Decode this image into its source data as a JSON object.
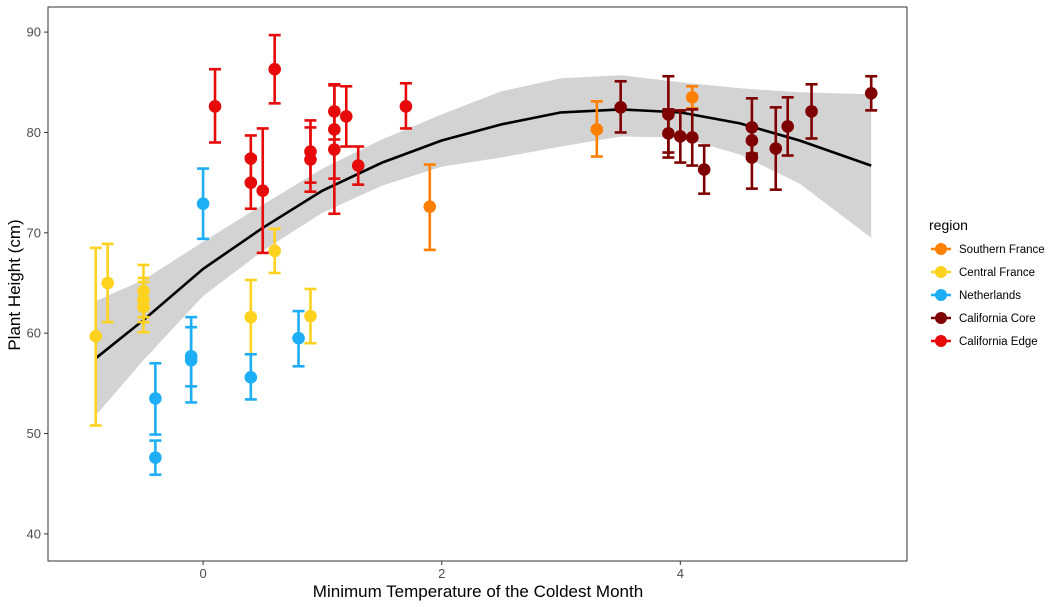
{
  "chart_data": {
    "type": "scatter",
    "xlabel": "Minimum Temperature of the Coldest Month",
    "ylabel": "Plant Height (cm)",
    "xlim": [
      -1.3,
      5.9
    ],
    "ylim": [
      37.3,
      92.5
    ],
    "x_ticks": [
      0,
      2,
      4
    ],
    "y_ticks": [
      40,
      50,
      60,
      70,
      80,
      90
    ],
    "grid": false,
    "legend": {
      "title": "region",
      "position": "right",
      "entries": [
        "Southern France",
        "Central France",
        "Netherlands",
        "California Core",
        "California Edge"
      ]
    },
    "series": [
      {
        "name": "Southern France",
        "color": "#FF7F00",
        "points": [
          {
            "x": 1.9,
            "y": 72.6,
            "lo": 68.3,
            "hi": 76.8
          },
          {
            "x": 3.3,
            "y": 80.3,
            "lo": 77.6,
            "hi": 83.1
          },
          {
            "x": 4.1,
            "y": 83.5,
            "lo": 82.4,
            "hi": 84.6
          }
        ]
      },
      {
        "name": "Central France",
        "color": "#FFD21F",
        "points": [
          {
            "x": -0.9,
            "y": 59.7,
            "lo": 50.8,
            "hi": 68.5
          },
          {
            "x": -0.8,
            "y": 65.0,
            "lo": 61.1,
            "hi": 68.9
          },
          {
            "x": -0.5,
            "y": 64.2,
            "lo": 61.6,
            "hi": 66.8
          },
          {
            "x": -0.5,
            "y": 63.3,
            "lo": 61.1,
            "hi": 65.5
          },
          {
            "x": -0.5,
            "y": 62.6,
            "lo": 60.1,
            "hi": 65.1
          },
          {
            "x": 0.4,
            "y": 61.6,
            "lo": 57.9,
            "hi": 65.3
          },
          {
            "x": 0.6,
            "y": 68.2,
            "lo": 66.0,
            "hi": 70.4
          },
          {
            "x": 0.9,
            "y": 61.7,
            "lo": 59.0,
            "hi": 64.4
          }
        ]
      },
      {
        "name": "Netherlands",
        "color": "#1EAEF5",
        "points": [
          {
            "x": -0.4,
            "y": 53.5,
            "lo": 49.9,
            "hi": 57.0
          },
          {
            "x": -0.4,
            "y": 47.6,
            "lo": 45.9,
            "hi": 49.3
          },
          {
            "x": -0.1,
            "y": 57.7,
            "lo": 54.7,
            "hi": 60.6
          },
          {
            "x": -0.1,
            "y": 57.3,
            "lo": 53.1,
            "hi": 61.6
          },
          {
            "x": 0.0,
            "y": 72.9,
            "lo": 69.4,
            "hi": 76.4
          },
          {
            "x": 0.4,
            "y": 55.6,
            "lo": 53.4,
            "hi": 57.9
          },
          {
            "x": 0.8,
            "y": 59.5,
            "lo": 56.7,
            "hi": 62.2
          }
        ]
      },
      {
        "name": "California Core",
        "color": "#7F0000",
        "points": [
          {
            "x": 3.5,
            "y": 82.5,
            "lo": 80.0,
            "hi": 85.1
          },
          {
            "x": 3.9,
            "y": 81.8,
            "lo": 78.0,
            "hi": 85.6
          },
          {
            "x": 3.9,
            "y": 79.9,
            "lo": 77.5,
            "hi": 82.3
          },
          {
            "x": 4.0,
            "y": 79.6,
            "lo": 77.0,
            "hi": 82.2
          },
          {
            "x": 4.1,
            "y": 79.5,
            "lo": 76.7,
            "hi": 82.3
          },
          {
            "x": 4.2,
            "y": 76.3,
            "lo": 73.9,
            "hi": 78.7
          },
          {
            "x": 4.6,
            "y": 80.5,
            "lo": 77.6,
            "hi": 83.4
          },
          {
            "x": 4.6,
            "y": 79.2,
            "lo": 77.9,
            "hi": 80.5
          },
          {
            "x": 4.6,
            "y": 77.5,
            "lo": 74.4,
            "hi": 80.6
          },
          {
            "x": 4.8,
            "y": 78.4,
            "lo": 74.3,
            "hi": 82.5
          },
          {
            "x": 4.9,
            "y": 80.6,
            "lo": 77.7,
            "hi": 83.5
          },
          {
            "x": 5.1,
            "y": 82.1,
            "lo": 79.4,
            "hi": 84.8
          },
          {
            "x": 5.6,
            "y": 83.9,
            "lo": 82.2,
            "hi": 85.6
          }
        ]
      },
      {
        "name": "California Edge",
        "color": "#E60A0A",
        "points": [
          {
            "x": 0.1,
            "y": 82.6,
            "lo": 79.0,
            "hi": 86.3
          },
          {
            "x": 0.4,
            "y": 77.4,
            "lo": 75.1,
            "hi": 79.7
          },
          {
            "x": 0.4,
            "y": 75.0,
            "lo": 72.4,
            "hi": 77.6
          },
          {
            "x": 0.5,
            "y": 74.2,
            "lo": 68.0,
            "hi": 80.4
          },
          {
            "x": 0.6,
            "y": 86.3,
            "lo": 82.9,
            "hi": 89.7
          },
          {
            "x": 0.9,
            "y": 78.1,
            "lo": 75.0,
            "hi": 81.2
          },
          {
            "x": 0.9,
            "y": 77.3,
            "lo": 74.1,
            "hi": 80.5
          },
          {
            "x": 1.1,
            "y": 82.1,
            "lo": 79.3,
            "hi": 84.8
          },
          {
            "x": 1.1,
            "y": 80.3,
            "lo": 75.4,
            "hi": 84.7
          },
          {
            "x": 1.1,
            "y": 78.3,
            "lo": 71.9,
            "hi": 84.7
          },
          {
            "x": 1.2,
            "y": 81.6,
            "lo": 78.6,
            "hi": 84.6
          },
          {
            "x": 1.3,
            "y": 76.7,
            "lo": 74.8,
            "hi": 78.6
          },
          {
            "x": 1.7,
            "y": 82.6,
            "lo": 80.4,
            "hi": 84.9
          }
        ]
      }
    ],
    "fit": {
      "type": "quadratic",
      "color": "#000000",
      "ribbon_color": "#D3D3D3",
      "points": [
        {
          "x": -0.9,
          "y": 57.5,
          "lo": 51.8,
          "hi": 63.2
        },
        {
          "x": -0.5,
          "y": 61.3,
          "lo": 57.3,
          "hi": 65.3
        },
        {
          "x": 0.0,
          "y": 66.4,
          "lo": 63.7,
          "hi": 69.1
        },
        {
          "x": 0.5,
          "y": 70.5,
          "lo": 68.2,
          "hi": 72.8
        },
        {
          "x": 1.0,
          "y": 74.2,
          "lo": 72.0,
          "hi": 76.4
        },
        {
          "x": 1.5,
          "y": 77.0,
          "lo": 74.7,
          "hi": 79.3
        },
        {
          "x": 2.0,
          "y": 79.2,
          "lo": 76.6,
          "hi": 81.8
        },
        {
          "x": 2.5,
          "y": 80.8,
          "lo": 77.5,
          "hi": 84.1
        },
        {
          "x": 3.0,
          "y": 82.0,
          "lo": 78.6,
          "hi": 85.4
        },
        {
          "x": 3.5,
          "y": 82.3,
          "lo": 79.6,
          "hi": 85.7
        },
        {
          "x": 4.0,
          "y": 82.0,
          "lo": 79.5,
          "hi": 85.0
        },
        {
          "x": 4.5,
          "y": 80.9,
          "lo": 77.8,
          "hi": 84.4
        },
        {
          "x": 5.0,
          "y": 79.2,
          "lo": 74.9,
          "hi": 84.0
        },
        {
          "x": 5.6,
          "y": 76.7,
          "lo": 69.5,
          "hi": 83.8
        }
      ]
    }
  }
}
